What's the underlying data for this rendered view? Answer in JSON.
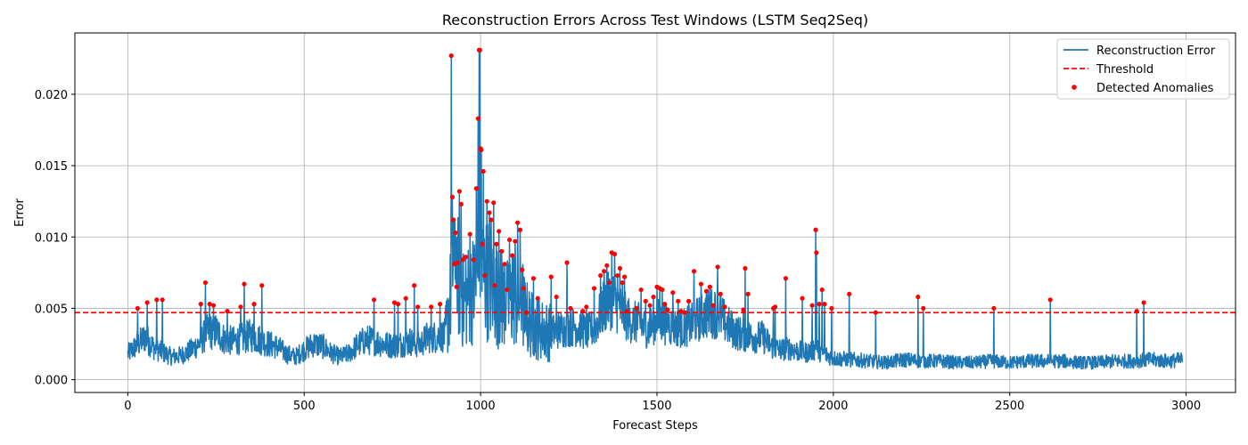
{
  "chart_data": {
    "type": "line",
    "title": "Reconstruction Errors Across Test Windows (LSTM Seq2Seq)",
    "xlabel": "Forecast Steps",
    "ylabel": "Error",
    "xlim": [
      -150,
      3140
    ],
    "ylim": [
      -0.0009,
      0.0243
    ],
    "xticks": [
      0,
      500,
      1000,
      1500,
      2000,
      2500,
      3000
    ],
    "xtick_labels": [
      "0",
      "500",
      "1000",
      "1500",
      "2000",
      "2500",
      "3000"
    ],
    "yticks": [
      0.0,
      0.005,
      0.01,
      0.015,
      0.02
    ],
    "ytick_labels": [
      "0.000",
      "0.005",
      "0.010",
      "0.015",
      "0.020"
    ],
    "grid": true,
    "legend_position": "top-right",
    "threshold": 0.0047,
    "series": [
      {
        "name": "Reconstruction Error",
        "kind": "line",
        "color": "#1f77b4",
        "n_points": 2990,
        "x": [
          0,
          25,
          50,
          75,
          100,
          125,
          150,
          175,
          200,
          225,
          250,
          275,
          300,
          325,
          350,
          375,
          400,
          425,
          450,
          475,
          500,
          525,
          550,
          575,
          600,
          625,
          650,
          675,
          700,
          725,
          750,
          775,
          800,
          825,
          850,
          875,
          900,
          915,
          920,
          930,
          940,
          950,
          960,
          970,
          980,
          990,
          995,
          1000,
          1005,
          1015,
          1025,
          1035,
          1045,
          1055,
          1065,
          1075,
          1085,
          1095,
          1105,
          1115,
          1125,
          1150,
          1175,
          1200,
          1225,
          1250,
          1275,
          1300,
          1325,
          1350,
          1375,
          1400,
          1425,
          1450,
          1475,
          1500,
          1525,
          1550,
          1575,
          1600,
          1625,
          1650,
          1675,
          1700,
          1725,
          1750,
          1775,
          1800,
          1825,
          1850,
          1875,
          1900,
          1925,
          1950,
          1975,
          2000,
          2050,
          2100,
          2150,
          2200,
          2250,
          2300,
          2350,
          2400,
          2450,
          2500,
          2550,
          2600,
          2650,
          2700,
          2750,
          2800,
          2850,
          2900,
          2950,
          2989
        ],
        "y": [
          0.0018,
          0.0024,
          0.003,
          0.0022,
          0.0019,
          0.0016,
          0.0017,
          0.002,
          0.0025,
          0.0033,
          0.0034,
          0.0028,
          0.0027,
          0.0029,
          0.0031,
          0.0028,
          0.0025,
          0.0023,
          0.0018,
          0.0016,
          0.0021,
          0.0025,
          0.0024,
          0.0019,
          0.0016,
          0.0018,
          0.0024,
          0.0028,
          0.0027,
          0.0025,
          0.0024,
          0.0025,
          0.0027,
          0.0024,
          0.003,
          0.003,
          0.0031,
          0.0058,
          0.0085,
          0.0078,
          0.0068,
          0.0055,
          0.0057,
          0.0062,
          0.0064,
          0.0068,
          0.0085,
          0.0095,
          0.0075,
          0.0072,
          0.0069,
          0.0063,
          0.0059,
          0.0056,
          0.0055,
          0.0052,
          0.0055,
          0.0058,
          0.0052,
          0.006,
          0.0045,
          0.0037,
          0.0035,
          0.0033,
          0.0035,
          0.0037,
          0.0037,
          0.0033,
          0.0037,
          0.0052,
          0.0057,
          0.0047,
          0.0041,
          0.0039,
          0.0035,
          0.0042,
          0.0039,
          0.0037,
          0.0036,
          0.0039,
          0.0044,
          0.0047,
          0.0046,
          0.0038,
          0.0033,
          0.0031,
          0.003,
          0.003,
          0.0023,
          0.0021,
          0.0022,
          0.002,
          0.0019,
          0.0022,
          0.0018,
          0.0015,
          0.0014,
          0.0013,
          0.0012,
          0.0014,
          0.0013,
          0.0013,
          0.0012,
          0.0012,
          0.0013,
          0.0012,
          0.0013,
          0.0013,
          0.0013,
          0.0012,
          0.0012,
          0.0013,
          0.0013,
          0.0014,
          0.0013,
          0.0014
        ]
      },
      {
        "name": "Threshold",
        "kind": "hline",
        "color": "#ff0000",
        "style": "dashed",
        "value": 0.0047
      },
      {
        "name": "Detected Anomalies",
        "kind": "scatter",
        "color": "#ff0000",
        "x": [
          28,
          55,
          82,
          98,
          207,
          220,
          232,
          243,
          282,
          320,
          330,
          358,
          380,
          698,
          756,
          766,
          788,
          812,
          822,
          860,
          885,
          917,
          920,
          923,
          926,
          929,
          932,
          935,
          940,
          945,
          950,
          958,
          970,
          980,
          988,
          993,
          996,
          998,
          1000,
          1002,
          1005,
          1008,
          1012,
          1018,
          1025,
          1030,
          1037,
          1040,
          1045,
          1052,
          1060,
          1068,
          1075,
          1082,
          1090,
          1098,
          1105,
          1112,
          1118,
          1122,
          1130,
          1150,
          1162,
          1200,
          1215,
          1245,
          1255,
          1290,
          1300,
          1322,
          1340,
          1350,
          1358,
          1365,
          1372,
          1380,
          1388,
          1395,
          1402,
          1408,
          1415,
          1442,
          1455,
          1468,
          1480,
          1490,
          1500,
          1508,
          1515,
          1522,
          1530,
          1545,
          1560,
          1568,
          1578,
          1590,
          1605,
          1625,
          1640,
          1650,
          1660,
          1672,
          1680,
          1692,
          1745,
          1750,
          1758,
          1830,
          1835,
          1865,
          1912,
          1940,
          1950,
          1952,
          1960,
          1968,
          1975,
          1995,
          2045,
          2120,
          2240,
          2255,
          2455,
          2615,
          2860,
          2880
        ],
        "y": [
          0.005,
          0.0054,
          0.0056,
          0.0056,
          0.0053,
          0.0068,
          0.0053,
          0.0052,
          0.0048,
          0.0051,
          0.0067,
          0.0053,
          0.0066,
          0.0056,
          0.0054,
          0.0053,
          0.0057,
          0.0066,
          0.0051,
          0.0051,
          0.0053,
          0.0227,
          0.0128,
          0.0112,
          0.0081,
          0.0103,
          0.0065,
          0.0082,
          0.0132,
          0.0123,
          0.0084,
          0.0086,
          0.0102,
          0.0084,
          0.0134,
          0.0183,
          0.0231,
          0.0231,
          0.0162,
          0.0161,
          0.0095,
          0.0146,
          0.0073,
          0.0125,
          0.0117,
          0.0112,
          0.0124,
          0.0066,
          0.0095,
          0.0104,
          0.009,
          0.0081,
          0.0063,
          0.0098,
          0.0087,
          0.0097,
          0.011,
          0.0105,
          0.0077,
          0.0064,
          0.0047,
          0.0071,
          0.0057,
          0.0072,
          0.0058,
          0.0082,
          0.005,
          0.0048,
          0.0051,
          0.0064,
          0.0073,
          0.0076,
          0.008,
          0.0068,
          0.0089,
          0.0088,
          0.0073,
          0.0078,
          0.0068,
          0.0072,
          0.0048,
          0.005,
          0.0063,
          0.0055,
          0.0052,
          0.0058,
          0.0065,
          0.0064,
          0.0063,
          0.0053,
          0.0049,
          0.0061,
          0.0055,
          0.0048,
          0.0047,
          0.0055,
          0.0076,
          0.0067,
          0.0062,
          0.0065,
          0.0052,
          0.0079,
          0.006,
          0.0051,
          0.0049,
          0.0078,
          0.006,
          0.005,
          0.0051,
          0.0071,
          0.0057,
          0.0052,
          0.0105,
          0.0089,
          0.0053,
          0.0063,
          0.0053,
          0.005,
          0.006,
          0.0047,
          0.0058,
          0.005,
          0.005,
          0.0056,
          0.0048,
          0.0054
        ]
      }
    ]
  }
}
